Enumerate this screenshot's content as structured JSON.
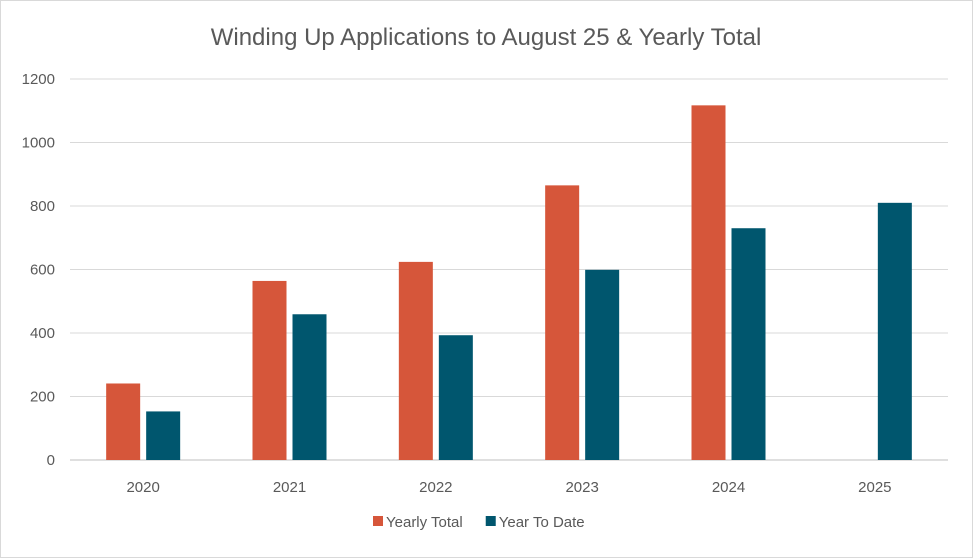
{
  "chart_data": {
    "type": "bar",
    "title": "Winding Up Applications to August 25 & Yearly Total",
    "xlabel": "",
    "ylabel": "",
    "categories": [
      "2020",
      "2021",
      "2022",
      "2023",
      "2024",
      "2025"
    ],
    "series": [
      {
        "name": "Yearly Total",
        "color": "#d6563a",
        "values": [
          241,
          564,
          624,
          865,
          1117,
          null
        ]
      },
      {
        "name": "Year To Date",
        "color": "#00566e",
        "values": [
          153,
          459,
          393,
          599,
          730,
          810
        ]
      }
    ],
    "ylim": [
      0,
      1200
    ],
    "yticks": [
      "0",
      "200",
      "400",
      "600",
      "800",
      "1000",
      "1200"
    ],
    "grid": true,
    "legend_position": "bottom"
  }
}
